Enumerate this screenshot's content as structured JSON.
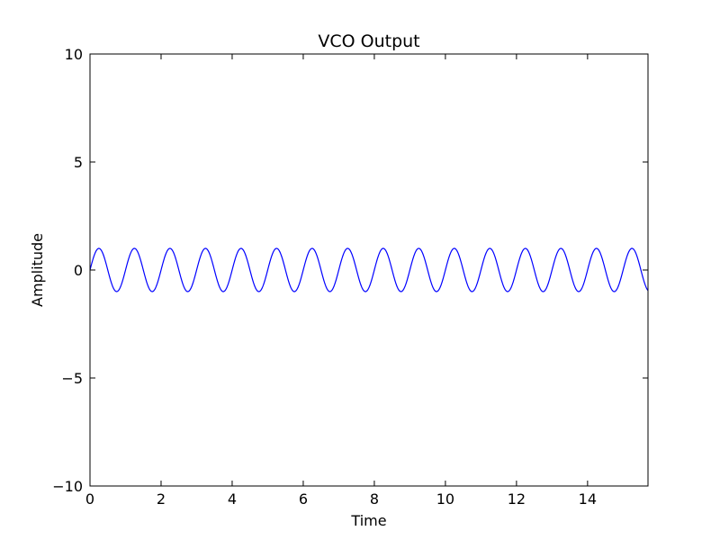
{
  "chart_data": {
    "type": "line",
    "title": "VCO Output",
    "xlabel": "Time",
    "ylabel": "Amplitude",
    "xlim": [
      0,
      15.7
    ],
    "ylim": [
      -10,
      10
    ],
    "x_ticks": [
      0,
      2,
      4,
      6,
      8,
      10,
      12,
      14
    ],
    "y_ticks": [
      -10,
      -5,
      0,
      5,
      10
    ],
    "x_tick_labels": [
      "0",
      "2",
      "4",
      "6",
      "8",
      "10",
      "12",
      "14"
    ],
    "y_tick_labels": [
      "−10",
      "−5",
      "0",
      "5",
      "10"
    ],
    "grid": false,
    "series": [
      {
        "color": "#0000ff",
        "function": "sine",
        "amplitude": 1,
        "frequency": 1,
        "phase": 0,
        "x_range": [
          0,
          15.7
        ]
      }
    ]
  }
}
